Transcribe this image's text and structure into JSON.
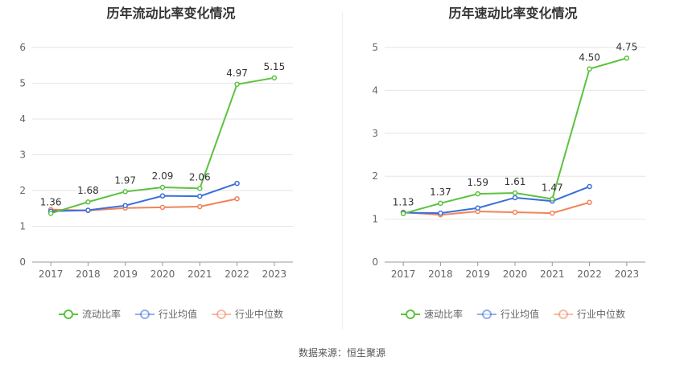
{
  "footer": "数据来源：恒生聚源",
  "chart_data": [
    {
      "type": "line",
      "title": "历年流动比率变化情况",
      "categories": [
        "2017",
        "2018",
        "2019",
        "2020",
        "2021",
        "2022",
        "2023"
      ],
      "ylim": [
        0,
        6
      ],
      "yticks": [
        0,
        1,
        2,
        3,
        4,
        5,
        6
      ],
      "grid": true,
      "legend_position": "bottom",
      "series": [
        {
          "name": "流动比率",
          "color": "#5cc23f",
          "labels": true,
          "values": [
            1.36,
            1.68,
            1.97,
            2.09,
            2.06,
            4.97,
            5.15
          ]
        },
        {
          "name": "行业均值",
          "color": "#3a6fd8",
          "labels": false,
          "values": [
            1.42,
            1.45,
            1.58,
            1.85,
            1.84,
            2.2,
            null
          ]
        },
        {
          "name": "行业中位数",
          "color": "#f0845a",
          "labels": false,
          "values": [
            1.47,
            1.44,
            1.51,
            1.53,
            1.55,
            1.77,
            null
          ]
        }
      ]
    },
    {
      "type": "line",
      "title": "历年速动比率变化情况",
      "categories": [
        "2017",
        "2018",
        "2019",
        "2020",
        "2021",
        "2022",
        "2023"
      ],
      "ylim": [
        0,
        5
      ],
      "yticks": [
        0,
        1,
        2,
        3,
        4,
        5
      ],
      "grid": true,
      "legend_position": "bottom",
      "series": [
        {
          "name": "速动比率",
          "color": "#5cc23f",
          "labels": true,
          "values": [
            1.13,
            1.37,
            1.59,
            1.61,
            1.47,
            4.5,
            4.75
          ]
        },
        {
          "name": "行业均值",
          "color": "#3a6fd8",
          "labels": false,
          "values": [
            1.15,
            1.14,
            1.26,
            1.5,
            1.42,
            1.76,
            null
          ]
        },
        {
          "name": "行业中位数",
          "color": "#f0845a",
          "labels": false,
          "values": [
            1.16,
            1.1,
            1.18,
            1.16,
            1.14,
            1.39,
            null
          ]
        }
      ]
    }
  ]
}
